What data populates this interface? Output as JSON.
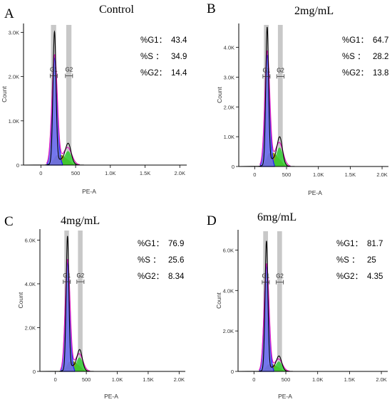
{
  "chart_data": [
    {
      "type": "area",
      "panel_letter": "A",
      "title": "Control",
      "xlabel": "PE-A",
      "ylabel": "Count",
      "xlim": [
        -250,
        2100
      ],
      "ylim": [
        0,
        3200
      ],
      "x_ticks": [
        0,
        500,
        1000,
        1500,
        2000
      ],
      "x_tick_labels": [
        "0",
        "500",
        "1.0K",
        "1.5K",
        "2.0K"
      ],
      "y_ticks": [
        0,
        1000,
        2000,
        3000
      ],
      "y_tick_labels": [
        "0",
        "1.0K",
        "2.0K",
        "3.0K"
      ],
      "g1_peak": 2950,
      "g2_peak": 420,
      "gates": [
        "G1",
        "G2"
      ],
      "stats": [
        {
          "label": "%G1：",
          "value": "43.4"
        },
        {
          "label": "%S  ：",
          "value": "34.9"
        },
        {
          "label": "%G2：",
          "value": "14.4"
        }
      ]
    },
    {
      "type": "area",
      "panel_letter": "B",
      "title": "2mg/mL",
      "xlabel": "PE-A",
      "ylabel": "Count",
      "xlim": [
        -250,
        2100
      ],
      "ylim": [
        0,
        4800
      ],
      "x_ticks": [
        0,
        500,
        1000,
        1500,
        2000
      ],
      "x_tick_labels": [
        "0",
        "500",
        "1.0K",
        "1.5K",
        "2.0K"
      ],
      "y_ticks": [
        0,
        1000,
        2000,
        3000,
        4000
      ],
      "y_tick_labels": [
        "0",
        "1.0K",
        "2.0K",
        "3.0K",
        "4.0K"
      ],
      "g1_peak": 4550,
      "g2_peak": 850,
      "gates": [
        "G1",
        "G2"
      ],
      "stats": [
        {
          "label": "%G1：",
          "value": "64.7"
        },
        {
          "label": "%S  ：",
          "value": "28.2"
        },
        {
          "label": "%G2：",
          "value": "13.8"
        }
      ]
    },
    {
      "type": "area",
      "panel_letter": "C",
      "title": "4mg/mL",
      "xlabel": "PE-A",
      "ylabel": "Count",
      "xlim": [
        -250,
        2100
      ],
      "ylim": [
        0,
        6500
      ],
      "x_ticks": [
        0,
        500,
        1000,
        1500,
        2000
      ],
      "x_tick_labels": [
        "0",
        "500",
        "1.0K",
        "1.5K",
        "2.0K"
      ],
      "y_ticks": [
        0,
        2000,
        4000,
        6000
      ],
      "y_tick_labels": [
        "0",
        "2.0K",
        "4.0K",
        "6.0K"
      ],
      "g1_peak": 6050,
      "g2_peak": 850,
      "gates": [
        "G1",
        "G2"
      ],
      "stats": [
        {
          "label": "%G1：",
          "value": "76.9"
        },
        {
          "label": "%S  ：",
          "value": "25.6"
        },
        {
          "label": "%G2：",
          "value": "8.34"
        }
      ]
    },
    {
      "type": "area",
      "panel_letter": "D",
      "title": "6mg/mL",
      "xlabel": "PE-A",
      "ylabel": "Count",
      "xlim": [
        -250,
        2100
      ],
      "ylim": [
        0,
        7000
      ],
      "x_ticks": [
        0,
        500,
        1000,
        1500,
        2000
      ],
      "x_tick_labels": [
        "0",
        "500",
        "1.0K",
        "1.5K",
        "2.0K"
      ],
      "y_ticks": [
        0,
        2000,
        4000,
        6000
      ],
      "y_tick_labels": [
        "0",
        "2.0K",
        "4.0K",
        "6.0K"
      ],
      "g1_peak": 6350,
      "g2_peak": 650,
      "gates": [
        "G1",
        "G2"
      ],
      "stats": [
        {
          "label": "%G1：",
          "value": "81.7"
        },
        {
          "label": "%S  ：",
          "value": "25"
        },
        {
          "label": "%G2：",
          "value": "4.35"
        }
      ]
    }
  ],
  "colors": {
    "axis": "#000000",
    "gate_band": "#c8c8c8",
    "g1_fill": "#6a6df0",
    "g1_stroke": "#1a1aff",
    "s_fill": "#9a9a1a",
    "g2_fill": "#33cc33",
    "model_line": "#e020c0",
    "histogram_line": "#000000"
  }
}
